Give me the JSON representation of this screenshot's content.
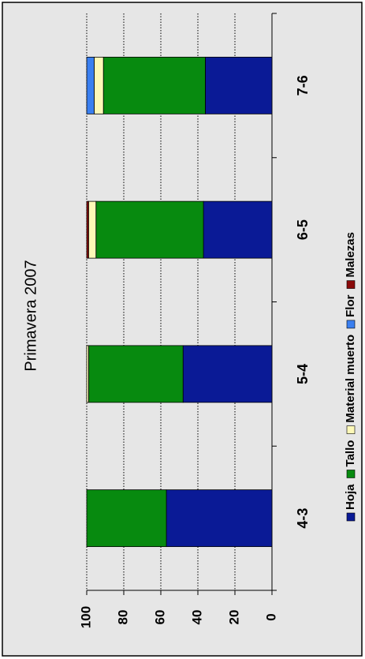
{
  "chart_data": {
    "type": "bar",
    "stacked": true,
    "title": "Primavera 2007",
    "categories": [
      "4-3",
      "5-4",
      "6-5",
      "7-6"
    ],
    "series": [
      {
        "name": "Hoja",
        "color": "#0a1a96",
        "values": [
          57,
          48,
          37,
          36
        ]
      },
      {
        "name": "Tallo",
        "color": "#078a0f",
        "values": [
          43,
          51,
          58,
          55
        ]
      },
      {
        "name": "Material muerto",
        "color": "#fdf8b8",
        "values": [
          0,
          1,
          4,
          5
        ]
      },
      {
        "name": "Flor",
        "color": "#3a7ff0",
        "values": [
          0,
          0,
          0,
          4
        ]
      },
      {
        "name": "Malezas",
        "color": "#8a0a0a",
        "values": [
          0,
          0,
          1,
          0
        ]
      }
    ],
    "ylim": [
      0,
      100
    ],
    "yticks": [
      0,
      20,
      40,
      60,
      80,
      100
    ],
    "grid": true
  }
}
